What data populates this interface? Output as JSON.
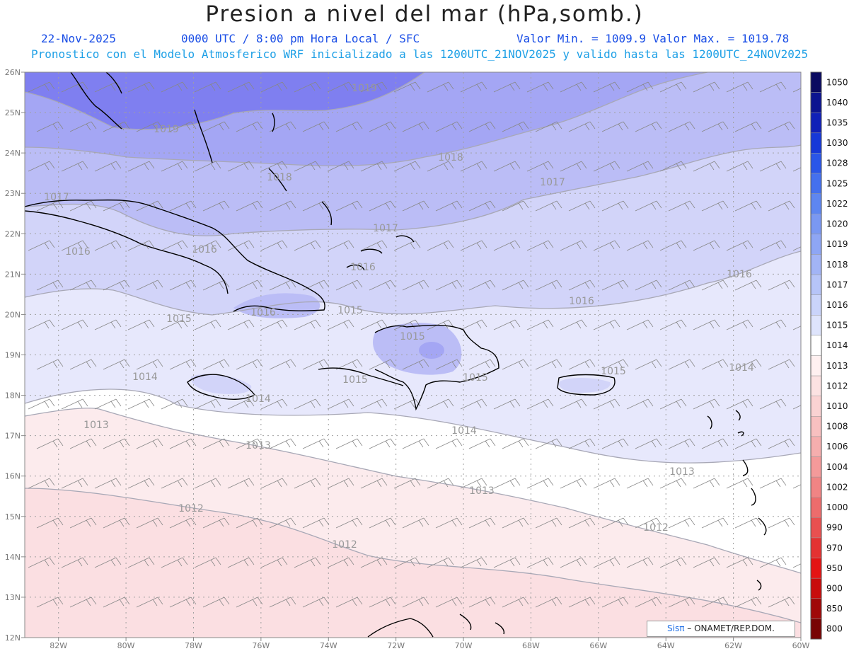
{
  "header": {
    "title": "Presion a nivel del mar (hPa,somb.)",
    "date": "22-Nov-2025",
    "time_info": "0000 UTC / 8:00 pm Hora Local / SFC",
    "min_max": "Valor Min. = 1009.9  Valor Max. = 1019.78",
    "forecast_info": "Pronostico con el Modelo Atmosferico WRF inicializado a las 1200UTC_21NOV2025 y valido hasta las  1200UTC_24NOV2025"
  },
  "map": {
    "lat_labels": [
      "26N",
      "25N",
      "24N",
      "23N",
      "22N",
      "21N",
      "20N",
      "19N",
      "18N",
      "17N",
      "16N",
      "15N",
      "14N",
      "13N",
      "12N"
    ],
    "lon_labels": [
      "82W",
      "80W",
      "78W",
      "76W",
      "74W",
      "72W",
      "70W",
      "68W",
      "66W",
      "64W",
      "62W",
      "60W"
    ],
    "bands": [
      {
        "value": 1019,
        "color": "#7f7ff0"
      },
      {
        "value": 1018,
        "color": "#a4a6f4"
      },
      {
        "value": 1017,
        "color": "#bbbdf6"
      },
      {
        "value": 1016,
        "color": "#d2d4f9"
      },
      {
        "value": 1015,
        "color": "#e7e8fc"
      },
      {
        "value": 1014,
        "color": "#ffffff"
      },
      {
        "value": 1013,
        "color": "#fcebed"
      },
      {
        "value": 1012,
        "color": "#fbdfe2"
      }
    ],
    "isobar_labels": [
      "1019",
      "1019",
      "1018",
      "1018",
      "1017",
      "1017",
      "1017",
      "1016",
      "1016",
      "1016",
      "1016",
      "1016",
      "1016",
      "1015",
      "1015",
      "1015",
      "1015",
      "1015",
      "1015",
      "1014",
      "1014",
      "1014",
      "1014",
      "1013",
      "1013",
      "1013",
      "1013",
      "1012",
      "1012",
      "1012"
    ]
  },
  "colorbar": {
    "levels": [
      "1050",
      "1040",
      "1035",
      "1030",
      "1028",
      "1025",
      "1022",
      "1020",
      "1019",
      "1018",
      "1017",
      "1016",
      "1015",
      "1014",
      "1013",
      "1012",
      "1010",
      "1008",
      "1006",
      "1004",
      "1002",
      "1000",
      "990",
      "970",
      "950",
      "900",
      "850",
      "800"
    ],
    "colors": [
      "#0a0a60",
      "#0c1490",
      "#1020b8",
      "#1638d8",
      "#2a56e8",
      "#4470ee",
      "#5e86f0",
      "#7a98f2",
      "#8ea6f4",
      "#a2b4f6",
      "#b6c4f8",
      "#cad4fa",
      "#dee4fc",
      "#ffffff",
      "#fff0f0",
      "#fce2e2",
      "#fad2d2",
      "#f8c0c0",
      "#f6aeae",
      "#f49a9a",
      "#f08484",
      "#ec6c6c",
      "#e85050",
      "#e43232",
      "#e41414",
      "#c80c0c",
      "#a00808",
      "#780404"
    ]
  },
  "credit": {
    "sis": "Sisπ",
    "text": "– ONAMET/REP.DOM."
  }
}
